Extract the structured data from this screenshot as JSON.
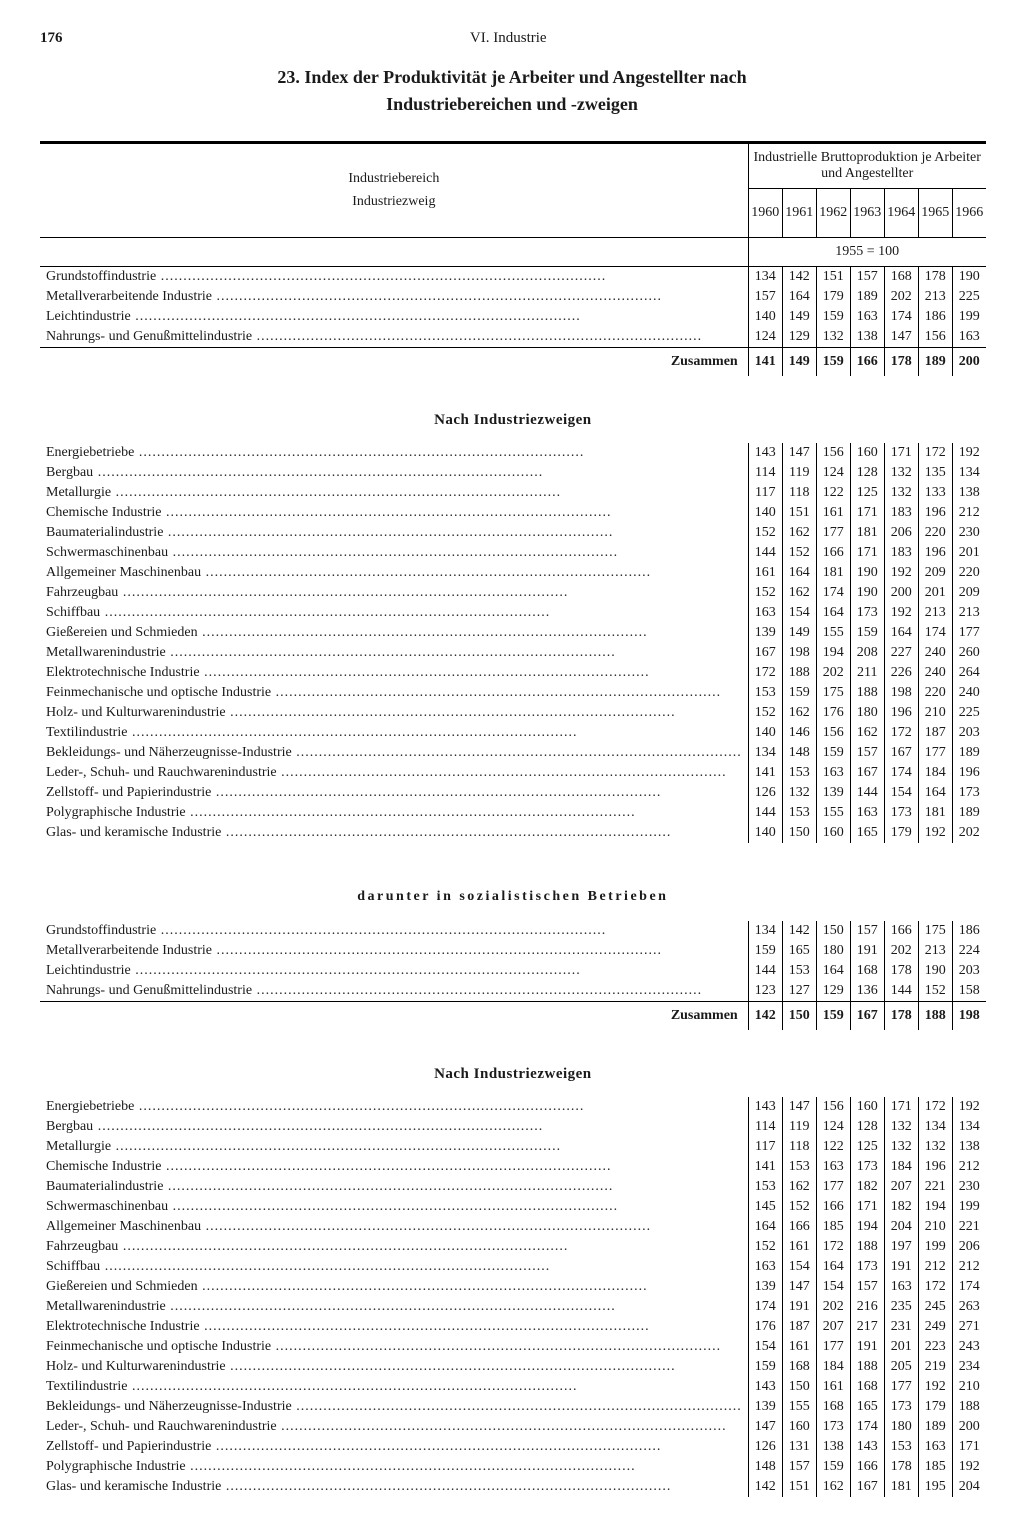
{
  "page_number": "176",
  "chapter": "VI. Industrie",
  "title": "23. Index der Produktivität je Arbeiter und Angestellter nach",
  "subtitle": "Industriebereichen und -zweigen",
  "span_header": "Industrielle Bruttoproduktion je Arbeiter und Angestellter",
  "col_label_1": "Industriebereich",
  "col_label_2": "Industriezweig",
  "base_year": "1955 = 100",
  "years": [
    "1960",
    "1961",
    "1962",
    "1963",
    "1964",
    "1965",
    "1966"
  ],
  "sum_label": "Zusammen",
  "sec2_head": "Nach Industriezweigen",
  "sec3_head": "darunter in sozialistischen Betrieben",
  "sec4_head": "Nach Industriezweigen",
  "block1_rows": [
    {
      "label": "Grundstoffindustrie",
      "v": [
        "134",
        "142",
        "151",
        "157",
        "168",
        "178",
        "190"
      ]
    },
    {
      "label": "Metallverarbeitende Industrie",
      "v": [
        "157",
        "164",
        "179",
        "189",
        "202",
        "213",
        "225"
      ]
    },
    {
      "label": "Leichtindustrie",
      "v": [
        "140",
        "149",
        "159",
        "163",
        "174",
        "186",
        "199"
      ]
    },
    {
      "label": "Nahrungs- und Genußmittelindustrie",
      "v": [
        "124",
        "129",
        "132",
        "138",
        "147",
        "156",
        "163"
      ]
    }
  ],
  "block1_sum": [
    "141",
    "149",
    "159",
    "166",
    "178",
    "189",
    "200"
  ],
  "block2_rows": [
    {
      "label": "Energiebetriebe",
      "v": [
        "143",
        "147",
        "156",
        "160",
        "171",
        "172",
        "192"
      ]
    },
    {
      "label": "Bergbau",
      "v": [
        "114",
        "119",
        "124",
        "128",
        "132",
        "135",
        "134"
      ]
    },
    {
      "label": "Metallurgie",
      "v": [
        "117",
        "118",
        "122",
        "125",
        "132",
        "133",
        "138"
      ]
    },
    {
      "label": "Chemische Industrie",
      "v": [
        "140",
        "151",
        "161",
        "171",
        "183",
        "196",
        "212"
      ]
    },
    {
      "label": "Baumaterialindustrie",
      "v": [
        "152",
        "162",
        "177",
        "181",
        "206",
        "220",
        "230"
      ]
    },
    {
      "label": "Schwermaschinenbau",
      "v": [
        "144",
        "152",
        "166",
        "171",
        "183",
        "196",
        "201"
      ]
    },
    {
      "label": "Allgemeiner Maschinenbau",
      "v": [
        "161",
        "164",
        "181",
        "190",
        "192",
        "209",
        "220"
      ]
    },
    {
      "label": "Fahrzeugbau",
      "v": [
        "152",
        "162",
        "174",
        "190",
        "200",
        "201",
        "209"
      ]
    },
    {
      "label": "Schiffbau",
      "v": [
        "163",
        "154",
        "164",
        "173",
        "192",
        "213",
        "213"
      ]
    },
    {
      "label": "Gießereien und Schmieden",
      "v": [
        "139",
        "149",
        "155",
        "159",
        "164",
        "174",
        "177"
      ]
    },
    {
      "label": "Metallwarenindustrie",
      "v": [
        "167",
        "198",
        "194",
        "208",
        "227",
        "240",
        "260"
      ]
    },
    {
      "label": "Elektrotechnische Industrie",
      "v": [
        "172",
        "188",
        "202",
        "211",
        "226",
        "240",
        "264"
      ]
    },
    {
      "label": "Feinmechanische und optische Industrie",
      "v": [
        "153",
        "159",
        "175",
        "188",
        "198",
        "220",
        "240"
      ]
    },
    {
      "label": "Holz- und Kulturwarenindustrie",
      "v": [
        "152",
        "162",
        "176",
        "180",
        "196",
        "210",
        "225"
      ]
    },
    {
      "label": "Textilindustrie",
      "v": [
        "140",
        "146",
        "156",
        "162",
        "172",
        "187",
        "203"
      ]
    },
    {
      "label": "Bekleidungs- und Näherzeugnisse-Industrie",
      "v": [
        "134",
        "148",
        "159",
        "157",
        "167",
        "177",
        "189"
      ]
    },
    {
      "label": "Leder-, Schuh- und Rauchwarenindustrie",
      "v": [
        "141",
        "153",
        "163",
        "167",
        "174",
        "184",
        "196"
      ]
    },
    {
      "label": "Zellstoff- und Papierindustrie",
      "v": [
        "126",
        "132",
        "139",
        "144",
        "154",
        "164",
        "173"
      ]
    },
    {
      "label": "Polygraphische Industrie",
      "v": [
        "144",
        "153",
        "155",
        "163",
        "173",
        "181",
        "189"
      ]
    },
    {
      "label": "Glas- und keramische Industrie",
      "v": [
        "140",
        "150",
        "160",
        "165",
        "179",
        "192",
        "202"
      ]
    }
  ],
  "block3_rows": [
    {
      "label": "Grundstoffindustrie",
      "v": [
        "134",
        "142",
        "150",
        "157",
        "166",
        "175",
        "186"
      ]
    },
    {
      "label": "Metallverarbeitende Industrie",
      "v": [
        "159",
        "165",
        "180",
        "191",
        "202",
        "213",
        "224"
      ]
    },
    {
      "label": "Leichtindustrie",
      "v": [
        "144",
        "153",
        "164",
        "168",
        "178",
        "190",
        "203"
      ]
    },
    {
      "label": "Nahrungs- und Genußmittelindustrie",
      "v": [
        "123",
        "127",
        "129",
        "136",
        "144",
        "152",
        "158"
      ]
    }
  ],
  "block3_sum": [
    "142",
    "150",
    "159",
    "167",
    "178",
    "188",
    "198"
  ],
  "block4_rows": [
    {
      "label": "Energiebetriebe",
      "v": [
        "143",
        "147",
        "156",
        "160",
        "171",
        "172",
        "192"
      ]
    },
    {
      "label": "Bergbau",
      "v": [
        "114",
        "119",
        "124",
        "128",
        "132",
        "134",
        "134"
      ]
    },
    {
      "label": "Metallurgie",
      "v": [
        "117",
        "118",
        "122",
        "125",
        "132",
        "132",
        "138"
      ]
    },
    {
      "label": "Chemische Industrie",
      "v": [
        "141",
        "153",
        "163",
        "173",
        "184",
        "196",
        "212"
      ]
    },
    {
      "label": "Baumaterialindustrie",
      "v": [
        "153",
        "162",
        "177",
        "182",
        "207",
        "221",
        "230"
      ]
    },
    {
      "label": "Schwermaschinenbau",
      "v": [
        "145",
        "152",
        "166",
        "171",
        "182",
        "194",
        "199"
      ]
    },
    {
      "label": "Allgemeiner Maschinenbau",
      "v": [
        "164",
        "166",
        "185",
        "194",
        "204",
        "210",
        "221"
      ]
    },
    {
      "label": "Fahrzeugbau",
      "v": [
        "152",
        "161",
        "172",
        "188",
        "197",
        "199",
        "206"
      ]
    },
    {
      "label": "Schiffbau",
      "v": [
        "163",
        "154",
        "164",
        "173",
        "191",
        "212",
        "212"
      ]
    },
    {
      "label": "Gießereien und Schmieden",
      "v": [
        "139",
        "147",
        "154",
        "157",
        "163",
        "172",
        "174"
      ]
    },
    {
      "label": "Metallwarenindustrie",
      "v": [
        "174",
        "191",
        "202",
        "216",
        "235",
        "245",
        "263"
      ]
    },
    {
      "label": "Elektrotechnische Industrie",
      "v": [
        "176",
        "187",
        "207",
        "217",
        "231",
        "249",
        "271"
      ]
    },
    {
      "label": "Feinmechanische und optische Industrie",
      "v": [
        "154",
        "161",
        "177",
        "191",
        "201",
        "223",
        "243"
      ]
    },
    {
      "label": "Holz- und Kulturwarenindustrie",
      "v": [
        "159",
        "168",
        "184",
        "188",
        "205",
        "219",
        "234"
      ]
    },
    {
      "label": "Textilindustrie",
      "v": [
        "143",
        "150",
        "161",
        "168",
        "177",
        "192",
        "210"
      ]
    },
    {
      "label": "Bekleidungs- und Näherzeugnisse-Industrie",
      "v": [
        "139",
        "155",
        "168",
        "165",
        "173",
        "179",
        "188"
      ]
    },
    {
      "label": "Leder-, Schuh- und Rauchwarenindustrie",
      "v": [
        "147",
        "160",
        "173",
        "174",
        "180",
        "189",
        "200"
      ]
    },
    {
      "label": "Zellstoff- und Papierindustrie",
      "v": [
        "126",
        "131",
        "138",
        "143",
        "153",
        "163",
        "171"
      ]
    },
    {
      "label": "Polygraphische Industrie",
      "v": [
        "148",
        "157",
        "159",
        "166",
        "178",
        "185",
        "192"
      ]
    },
    {
      "label": "Glas- und keramische Industrie",
      "v": [
        "142",
        "151",
        "162",
        "167",
        "181",
        "195",
        "204"
      ]
    }
  ]
}
